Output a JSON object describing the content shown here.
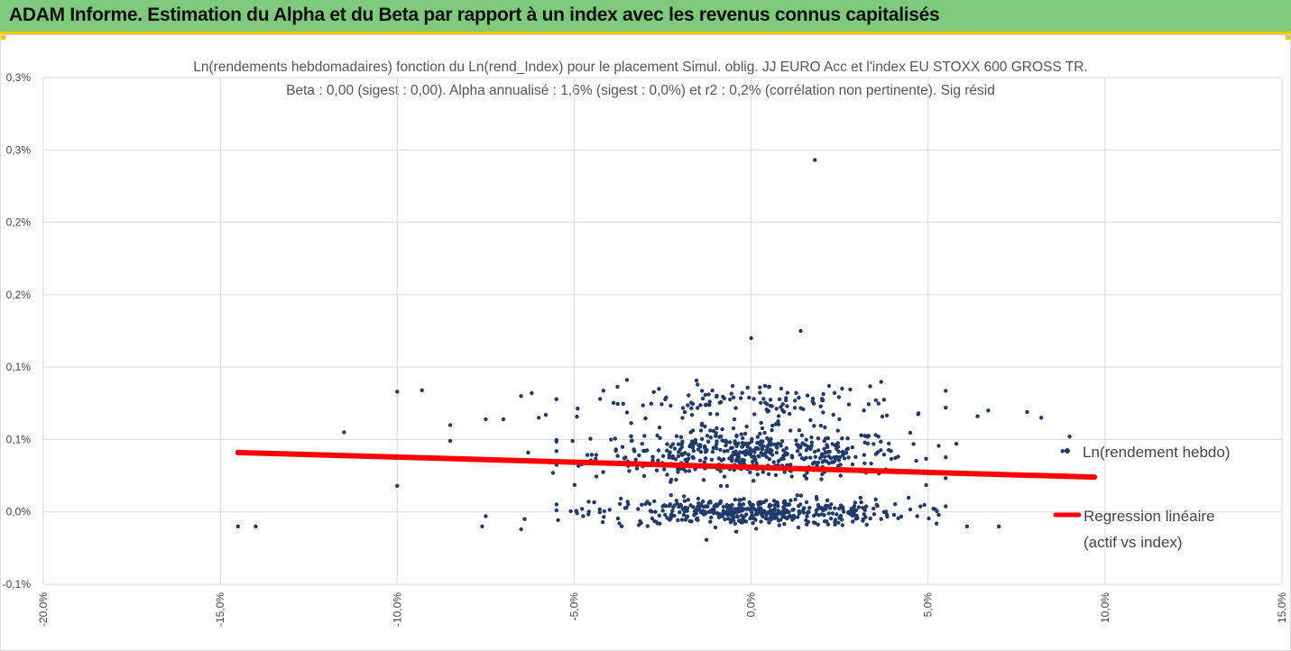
{
  "header": {
    "title": "ADAM Informe. Estimation du Alpha et du Beta par rapport à un index avec les revenus connus capitalisés"
  },
  "colors": {
    "banner": "#7fc97c",
    "accent": "#f5c400",
    "points": "#1f3a6b",
    "regression": "#ff0000",
    "grid": "#d9d9d9"
  },
  "chart_data": {
    "type": "scatter",
    "title": "Ln(rendements hebdomadaires) fonction du Ln(rend_Index) pour le placement Simul. oblig. JJ EURO Acc et l'index EU STOXX 600 GROSS TR.",
    "subtitle": "Beta : 0,00 (sigest : 0,00). Alpha annualisé : 1,6% (sigest : 0,0%) et r2 : 0,2% (corrélation non pertinente). Sig résid",
    "xlim": [
      -0.2,
      0.15
    ],
    "ylim": [
      -0.0005,
      0.003
    ],
    "x_tick_values": [
      -0.2,
      -0.15,
      -0.1,
      -0.05,
      0,
      0.05,
      0.1,
      0.15
    ],
    "x_tick_labels": [
      "-20,0%",
      "-15,0%",
      "-10,0%",
      "-5,0%",
      "0,0%",
      "5,0%",
      "10,0%",
      "15,0%"
    ],
    "y_tick_values": [
      -0.0005,
      0,
      0.0005,
      0.001,
      0.0015,
      0.002,
      0.0025,
      0.003
    ],
    "y_tick_labels": [
      "-0,1%",
      "0,0%",
      "0,1%",
      "0,1%",
      "0,2%",
      "0,2%",
      "0,3%",
      "0,3%"
    ],
    "grid": true,
    "legend_position": "right",
    "series": [
      {
        "name": "Ln(rendement hebdo)",
        "kind": "scatter",
        "outliers": [
          [
            -0.145,
            -0.0001
          ],
          [
            -0.14,
            -0.0001
          ],
          [
            -0.115,
            0.00055
          ],
          [
            -0.1,
            0.00083
          ],
          [
            -0.1,
            0.00018
          ],
          [
            -0.093,
            0.00084
          ],
          [
            -0.085,
            0.0006
          ],
          [
            -0.085,
            0.00049
          ],
          [
            -0.076,
            -0.0001
          ],
          [
            -0.075,
            -3e-05
          ],
          [
            -0.075,
            0.00064
          ],
          [
            -0.07,
            0.00064
          ],
          [
            -0.065,
            -0.00012
          ],
          [
            -0.064,
            -5e-05
          ],
          [
            -0.065,
            0.0008
          ],
          [
            -0.062,
            0.00082
          ],
          [
            -0.06,
            0.00065
          ],
          [
            -0.058,
            0.00067
          ],
          [
            -0.063,
            0.00041
          ],
          [
            -0.056,
            0.00027
          ],
          [
            0.0,
            0.0012
          ],
          [
            0.014,
            0.00125
          ],
          [
            0.018,
            0.00243
          ],
          [
            0.067,
            0.0007
          ],
          [
            0.078,
            0.00069
          ],
          [
            0.082,
            0.00065
          ],
          [
            0.088,
            0.00042
          ],
          [
            0.09,
            0.00052
          ],
          [
            0.061,
            -0.0001
          ],
          [
            0.07,
            -0.0001
          ],
          [
            0.064,
            0.00066
          ],
          [
            0.055,
            0.00072
          ],
          [
            0.058,
            0.00047
          ],
          [
            0.053,
            -2e-05
          ]
        ],
        "clusters": [
          {
            "center": 0.0004,
            "spread": 0.00014,
            "share": 0.45
          },
          {
            "center": 0.0,
            "spread": 8e-05,
            "share": 0.42
          },
          {
            "center": 0.00075,
            "spread": 0.00012,
            "share": 0.13
          }
        ],
        "x_sd": 0.022,
        "count": 1050
      },
      {
        "name": "Regression linéaire (actif vs index)",
        "kind": "line",
        "legend_lines": [
          "Regression linéaire",
          "(actif vs index)"
        ],
        "x": [
          -0.145,
          0.097
        ],
        "y": [
          0.00041,
          0.00024
        ]
      }
    ]
  }
}
